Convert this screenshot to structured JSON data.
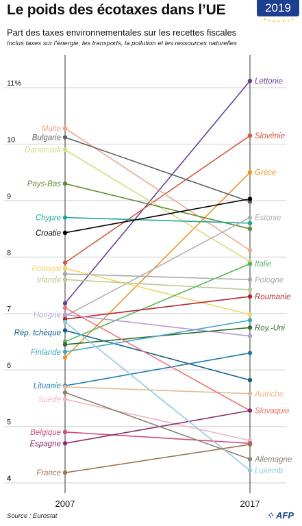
{
  "title": "Le poids des écotaxes dans l’UE",
  "badge": {
    "year": "2019"
  },
  "subtitle": "Part des taxes environnementales sur les recettes fiscales",
  "note": "Inclus taxes sur l’énergie, les transports, la pollution et les ressources naturelles",
  "source": "Source : Eurostat",
  "logo": "AFP",
  "chart_data": {
    "type": "line",
    "chart_style": "slope",
    "x": [
      "2007",
      "2017"
    ],
    "ylim": [
      4,
      11.6
    ],
    "yticks": [
      {
        "value": 4,
        "label": "4"
      },
      {
        "value": 5,
        "label": "5"
      },
      {
        "value": 6,
        "label": "6"
      },
      {
        "value": 7,
        "label": "7"
      },
      {
        "value": 8,
        "label": "8"
      },
      {
        "value": 9,
        "label": "9"
      },
      {
        "value": 10,
        "label": "10"
      },
      {
        "value": 11,
        "label": "11%"
      }
    ],
    "grid": true,
    "series": [
      {
        "name": "Lettonie",
        "values": [
          7.18,
          11.12
        ],
        "color": "#6a3d9a",
        "label_side": "right",
        "label_y": 11.12
      },
      {
        "name": "Slovénie",
        "values": [
          7.9,
          10.15
        ],
        "color": "#d9573f",
        "label_side": "right",
        "label_y": 10.15
      },
      {
        "name": "Grèce",
        "values": [
          6.22,
          9.5
        ],
        "color": "#f0921e",
        "label_side": "right",
        "label_y": 9.5
      },
      {
        "name": "Malte",
        "values": [
          10.28,
          8.12
        ],
        "color": "#f0a58a",
        "label_side": "left",
        "label_y": 10.28
      },
      {
        "name": "Bulgarie",
        "values": [
          10.12,
          8.98
        ],
        "color": "#606060",
        "label_side": "left",
        "label_y": 10.12
      },
      {
        "name": "Danemark",
        "values": [
          9.9,
          7.92
        ],
        "color": "#d5dc7e",
        "label_side": "left",
        "label_y": 9.9
      },
      {
        "name": "Pays-Bas",
        "values": [
          9.3,
          8.5
        ],
        "color": "#5f8b2d",
        "label_side": "left",
        "label_y": 9.3
      },
      {
        "name": "Chypre",
        "values": [
          8.7,
          8.6
        ],
        "color": "#1fa79a",
        "label_side": "left",
        "label_y": 8.7
      },
      {
        "name": "Croatie",
        "values": [
          8.43,
          9.03
        ],
        "color": "#000000",
        "label_side": "left",
        "label_y": 8.43
      },
      {
        "name": "Estonie",
        "values": [
          6.95,
          8.7
        ],
        "color": "#b0b0b0",
        "label_side": "right",
        "label_y": 8.7
      },
      {
        "name": "Portugal",
        "values": [
          7.8,
          6.98
        ],
        "color": "#f7d360",
        "label_side": "left",
        "label_y": 7.8
      },
      {
        "name": "Irlande",
        "values": [
          7.6,
          7.42
        ],
        "color": "#bcc68e",
        "label_side": "left",
        "label_y": 7.6
      },
      {
        "name": "Italie",
        "values": [
          6.5,
          7.88
        ],
        "color": "#4fb65a",
        "label_side": "right",
        "label_y": 7.88
      },
      {
        "name": "Pologne",
        "values": [
          7.7,
          7.6
        ],
        "color": "#a8a8a8",
        "label_side": "right",
        "label_y": 7.6
      },
      {
        "name": "Roumanie",
        "values": [
          6.9,
          7.3
        ],
        "color": "#b5262b",
        "label_side": "right",
        "label_y": 7.3
      },
      {
        "name": "Hongrie",
        "values": [
          6.98,
          6.6
        ],
        "color": "#b49cd2",
        "label_side": "left",
        "label_y": 6.98
      },
      {
        "name": "Rép. tchèque",
        "values": [
          6.7,
          5.82
        ],
        "color": "#0e5f8f",
        "label_side": "left",
        "label_y": 6.66
      },
      {
        "name": "Roy.-Uni",
        "values": [
          6.45,
          6.75
        ],
        "color": "#2f6b2a",
        "label_side": "right",
        "label_y": 6.75
      },
      {
        "name": "Finlande",
        "values": [
          6.32,
          6.88
        ],
        "color": "#3aa6c8",
        "label_side": "left",
        "label_y": 6.32
      },
      {
        "name": "Lituanie",
        "values": [
          5.72,
          6.3
        ],
        "color": "#1e7bb0",
        "label_side": "left",
        "label_y": 5.72
      },
      {
        "name": "Autriche",
        "values": [
          5.7,
          5.58
        ],
        "color": "#e5b98a",
        "label_side": "right",
        "label_y": 5.58
      },
      {
        "name": "Suède",
        "values": [
          5.48,
          4.75
        ],
        "color": "#f0b4c2",
        "label_side": "left",
        "label_y": 5.48
      },
      {
        "name": "Slovaquie",
        "values": [
          7.1,
          5.28
        ],
        "color": "#f07373",
        "label_side": "right",
        "label_y": 5.28
      },
      {
        "name": "Belgique",
        "values": [
          4.9,
          4.7
        ],
        "color": "#cf4a7d",
        "label_side": "left",
        "label_y": 4.9
      },
      {
        "name": "Espagne",
        "values": [
          4.7,
          5.28
        ],
        "color": "#8b2a6b",
        "label_side": "left",
        "label_y": 4.7
      },
      {
        "name": "Allemagne",
        "values": [
          5.6,
          4.42
        ],
        "color": "#8a8275",
        "label_side": "right",
        "label_y": 4.42
      },
      {
        "name": "Luxemb.",
        "values": [
          6.85,
          4.22
        ],
        "color": "#8ecae6",
        "label_side": "right",
        "label_y": 4.22
      },
      {
        "name": "France",
        "values": [
          4.18,
          4.68
        ],
        "color": "#9a7453",
        "label_side": "left",
        "label_y": 4.18
      }
    ]
  }
}
